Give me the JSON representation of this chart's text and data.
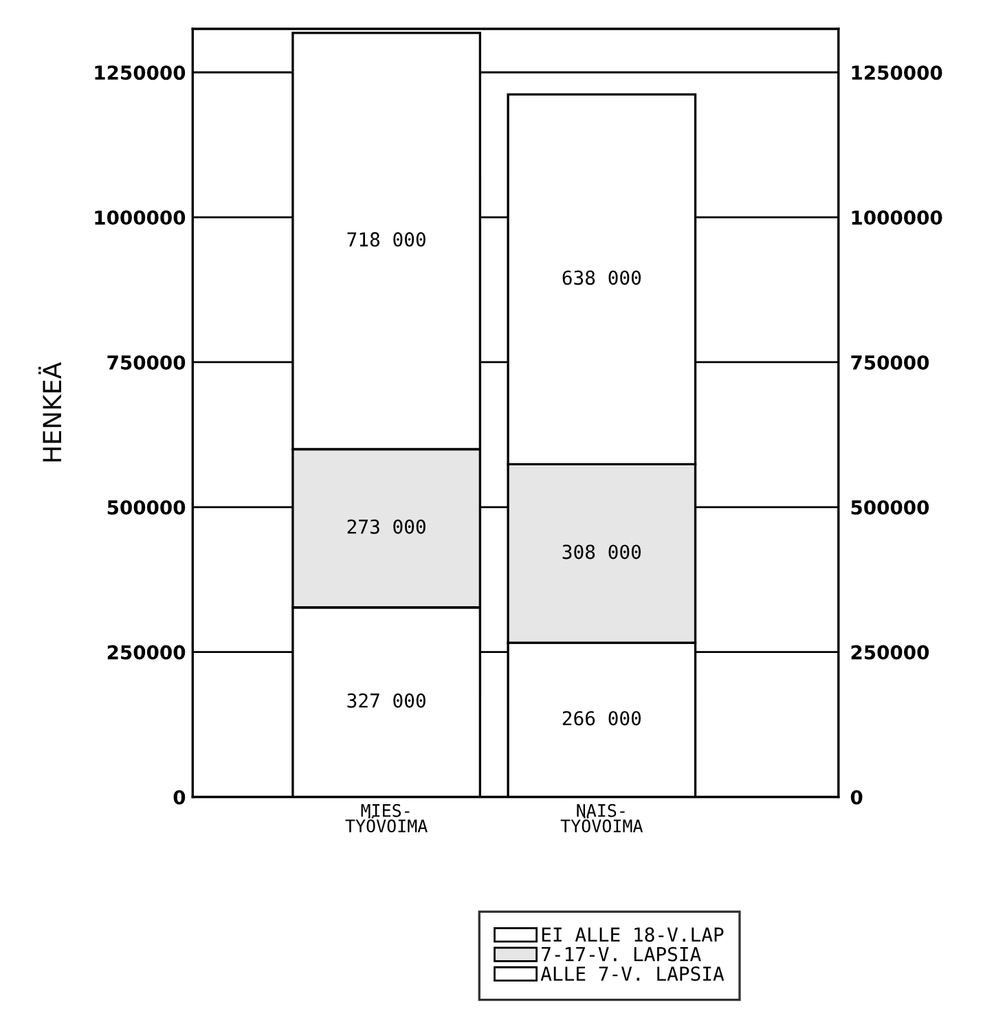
{
  "chart_data": {
    "type": "bar",
    "stacked": true,
    "ylabel": "HENKEÄ",
    "categories": [
      "MIES-\nTYÖVOIMA",
      "NAIS-\nTYÖVOIMA"
    ],
    "series": [
      {
        "name": "ALLE 7-V. LAPSIA",
        "color": "#ffffff",
        "values": [
          327000,
          266000
        ],
        "value_labels": [
          "327 000",
          "266 000"
        ]
      },
      {
        "name": "7-17-V. LAPSIA",
        "color": "#e6e6e6",
        "values": [
          273000,
          308000
        ],
        "value_labels": [
          "273 000",
          "308 000"
        ]
      },
      {
        "name": "EI ALLE 18-V.LAP",
        "color": "#ffffff",
        "values": [
          718000,
          638000
        ],
        "value_labels": [
          "718 000",
          "638 000"
        ]
      }
    ],
    "ylim": [
      0,
      1325000
    ],
    "yticks": [
      0,
      250000,
      500000,
      750000,
      1000000,
      1250000
    ],
    "y2lim": [
      0,
      1325000
    ],
    "y2ticks": [
      0,
      250000,
      500000,
      750000,
      1000000,
      1250000
    ],
    "grid": "y",
    "legend": "bottom"
  }
}
